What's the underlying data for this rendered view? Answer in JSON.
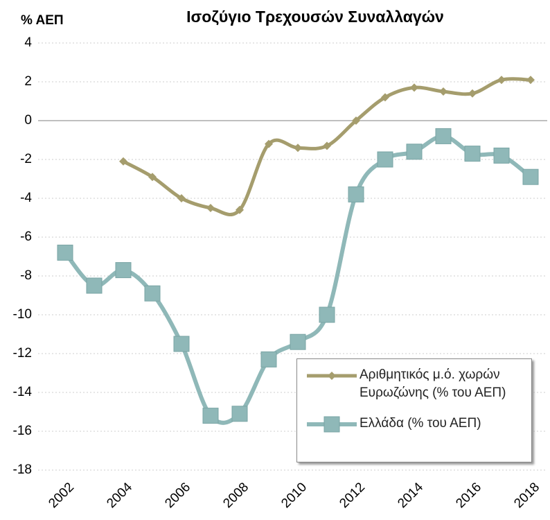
{
  "chart_data": {
    "type": "line",
    "title": "Ισοζύγιο Τρεχουσών Συναλλαγών",
    "y_label": "% ΑΕΠ",
    "x": [
      2002,
      2003,
      2004,
      2005,
      2006,
      2007,
      2008,
      2009,
      2010,
      2011,
      2012,
      2013,
      2014,
      2015,
      2016,
      2017,
      2018
    ],
    "xlim": [
      2002,
      2018
    ],
    "xticks": [
      2002,
      2004,
      2006,
      2008,
      2010,
      2012,
      2014,
      2016,
      2018
    ],
    "ylim": [
      -18,
      4
    ],
    "yticks": [
      4,
      2,
      0,
      -2,
      -4,
      -6,
      -8,
      -10,
      -12,
      -14,
      -16,
      -18
    ],
    "grid": true,
    "legend": "lower right",
    "series": [
      {
        "name": "Αριθμητικός μ.ό. χωρών Ευρωζώνης (% του ΑΕΠ)",
        "color": "#a59d6d",
        "marker": "diamond",
        "values": [
          null,
          null,
          -2.1,
          -2.9,
          -4.0,
          -4.5,
          -4.6,
          -1.2,
          -1.4,
          -1.3,
          0.0,
          1.2,
          1.7,
          1.5,
          1.4,
          2.1,
          2.1
        ]
      },
      {
        "name": "Ελλάδα (% του ΑΕΠ)",
        "color": "#8fb8b8",
        "marker": "square",
        "values": [
          -6.8,
          -8.5,
          -7.7,
          -8.9,
          -11.5,
          -15.2,
          -15.1,
          -12.3,
          -11.4,
          -10.0,
          -3.8,
          -2.0,
          -1.6,
          -0.8,
          -1.7,
          -1.8,
          -2.9
        ]
      }
    ]
  }
}
